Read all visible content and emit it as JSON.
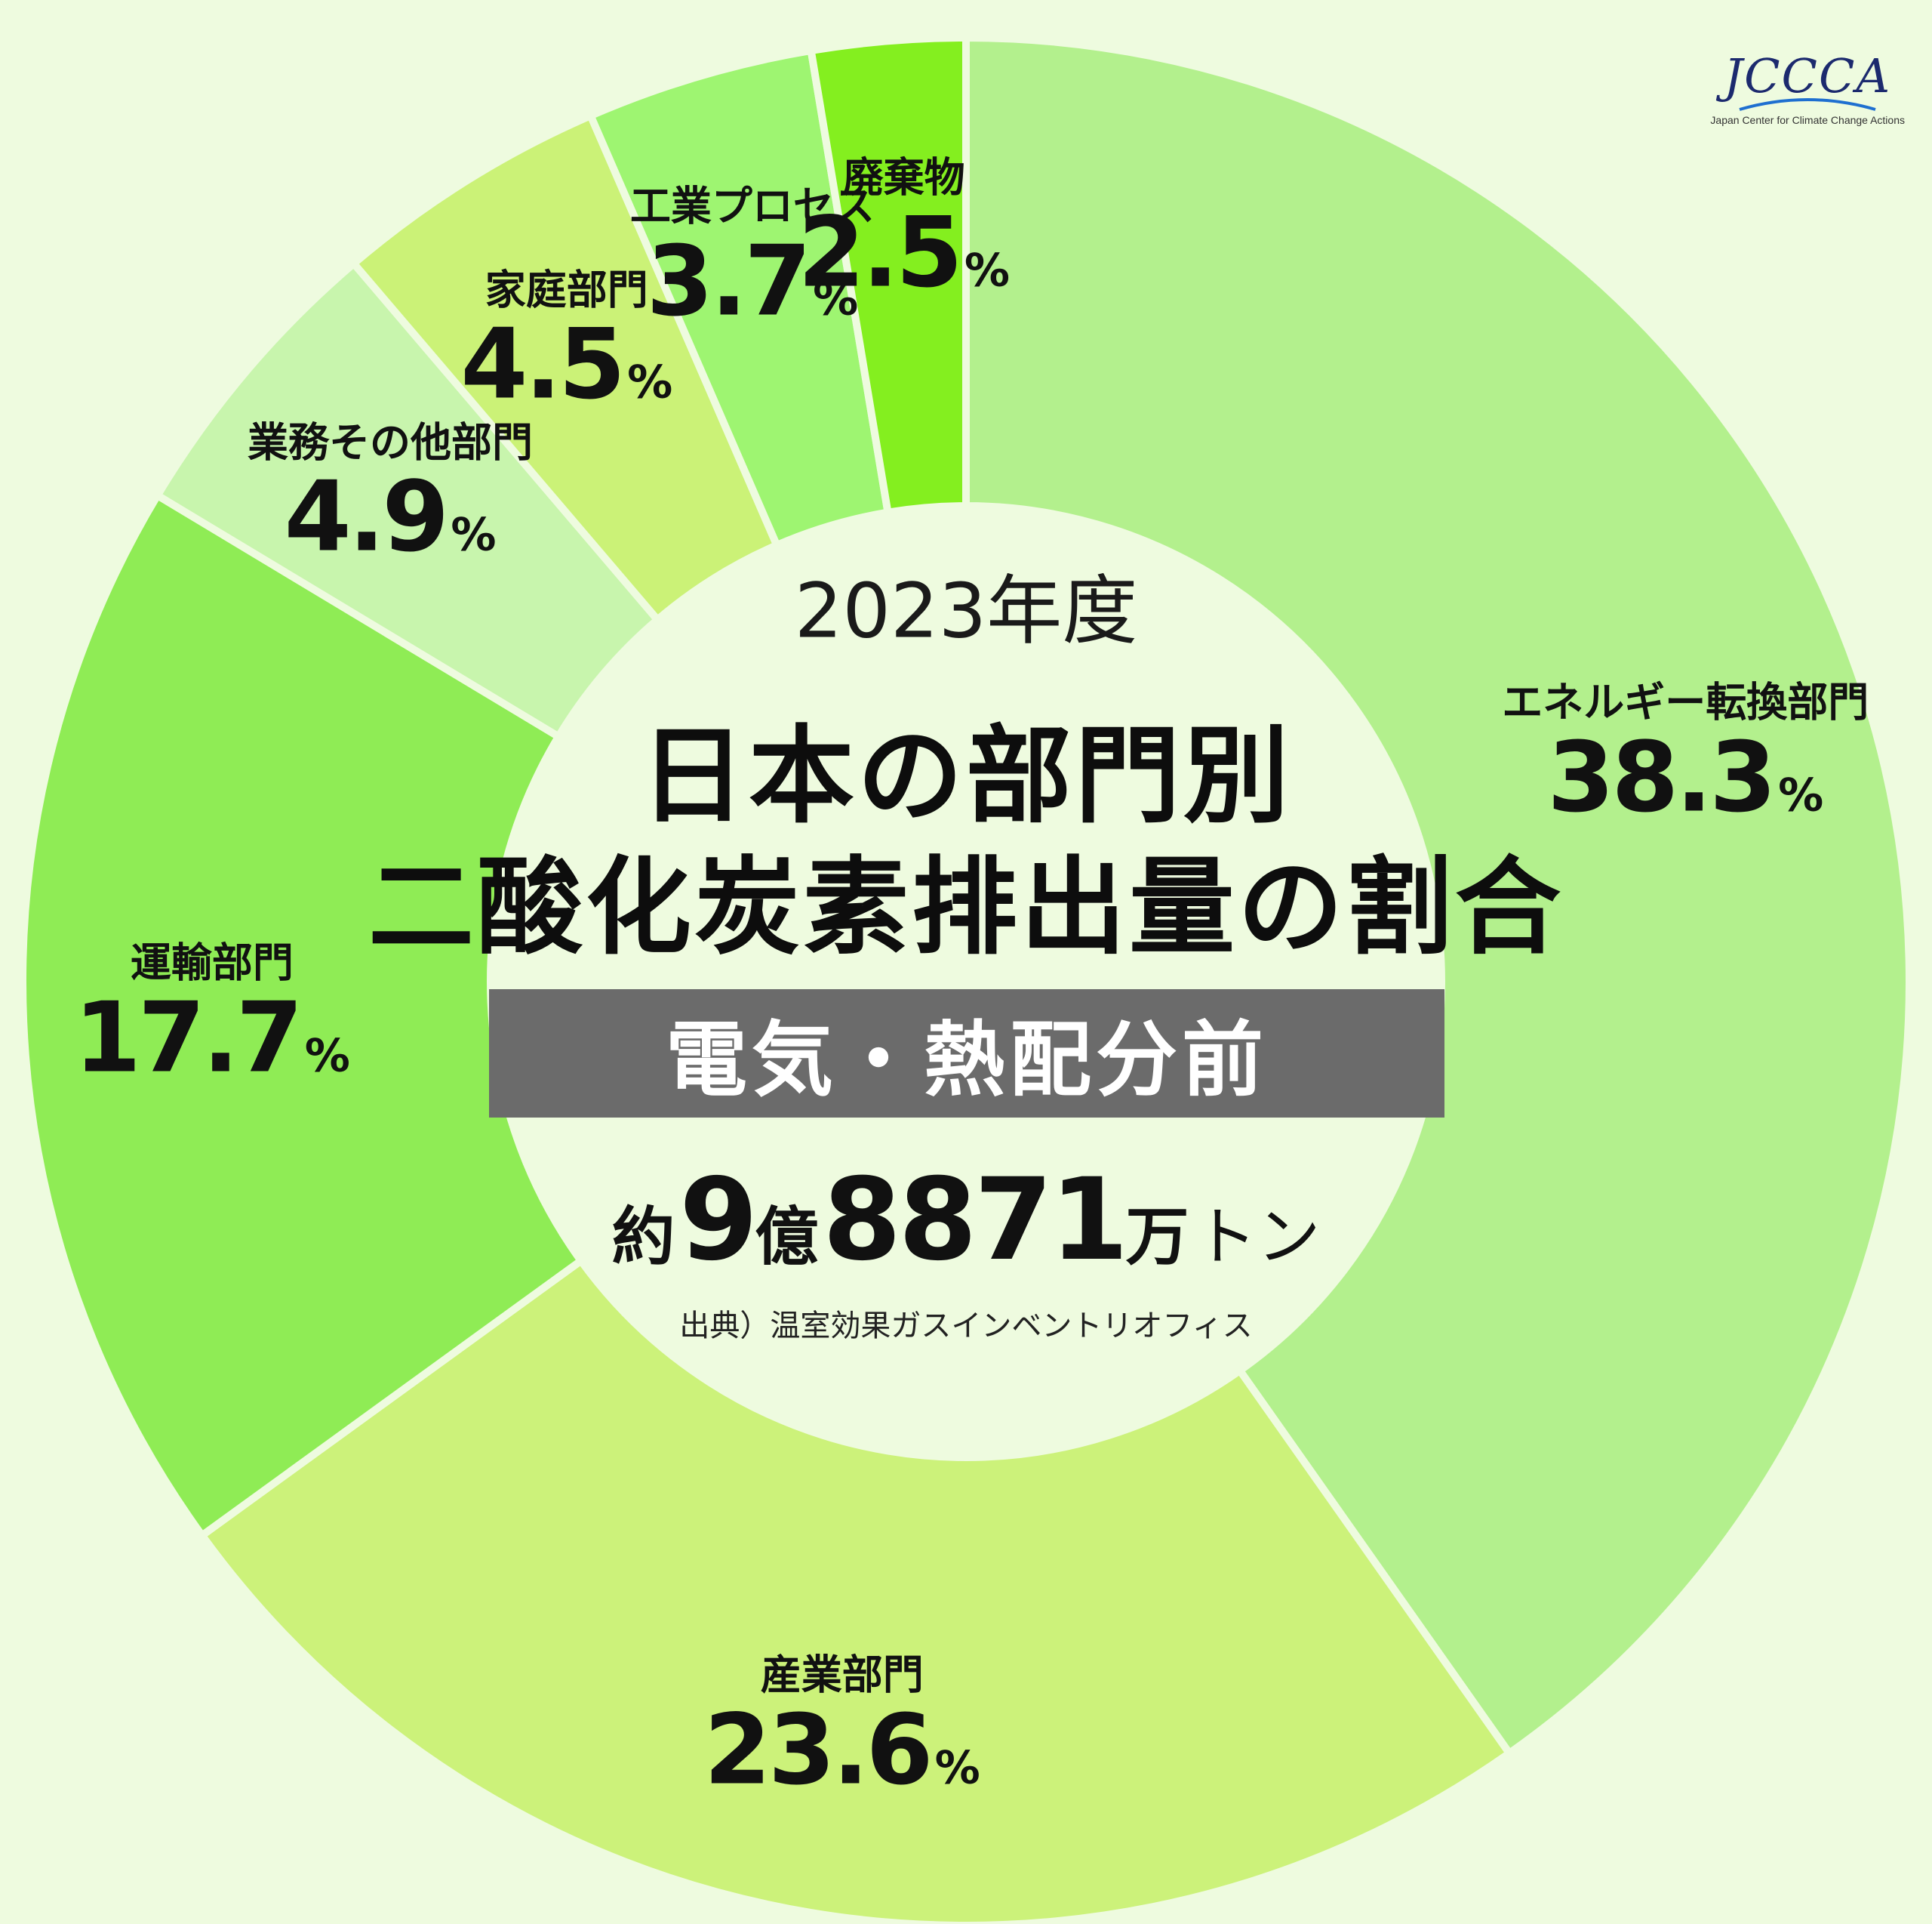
{
  "chart_data": {
    "type": "pie",
    "subtype": "donut",
    "title": "日本の部門別二酸化炭素排出量の割合",
    "year_label": "2023年度",
    "title_lines": [
      "日本の部門別",
      "二酸化炭素排出量の割合"
    ],
    "badge": "電気・熱配分前",
    "total": {
      "prefix": "約",
      "num1": "9",
      "unit1": "億",
      "num2": "8871",
      "unit2": "万",
      "unit3": "トン"
    },
    "source": "出典）温室効果ガスインベントリオフィス",
    "unit": "%",
    "slices": [
      {
        "label": "エネルギー転換部門",
        "value": 38.3,
        "display": "38.3",
        "color": "#b3f08d"
      },
      {
        "label": "産業部門",
        "value": 23.6,
        "display": "23.6",
        "color": "#ccf27a"
      },
      {
        "label": "運輸部門",
        "value": 17.7,
        "display": "17.7",
        "color": "#8fec55"
      },
      {
        "label": "業務その他部門",
        "value": 4.9,
        "display": "4.9",
        "color": "#c8f5ad"
      },
      {
        "label": "家庭部門",
        "value": 4.5,
        "display": "4.5",
        "color": "#cbf277"
      },
      {
        "label": "工業プロセス",
        "value": 3.7,
        "display": "3.7",
        "color": "#9ef571"
      },
      {
        "label": "廃棄物",
        "value": 2.5,
        "display": "2.5",
        "color": "#84ef1f"
      }
    ],
    "start_angle_deg": 0,
    "direction": "clockwise"
  },
  "logo": {
    "mark": "JCCCA",
    "text": "Japan Center for Climate Change Actions"
  }
}
